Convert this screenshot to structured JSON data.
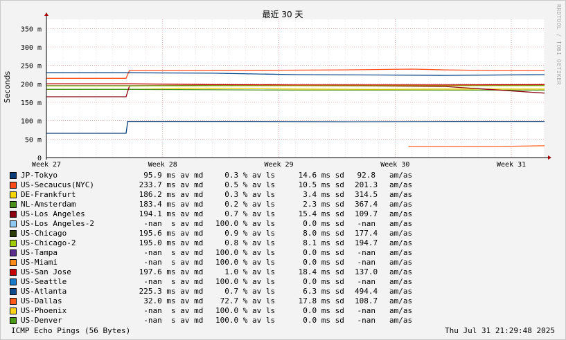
{
  "chart_data": {
    "type": "line",
    "title": "最近 30 天",
    "ylabel": "Seconds",
    "ylim": [
      0,
      375
    ],
    "y_ticks": [
      {
        "v": 0,
        "label": "0"
      },
      {
        "v": 50,
        "label": "50 m"
      },
      {
        "v": 100,
        "label": "100 m"
      },
      {
        "v": 150,
        "label": "150 m"
      },
      {
        "v": 200,
        "label": "200 m"
      },
      {
        "v": 250,
        "label": "250 m"
      },
      {
        "v": 300,
        "label": "300 m"
      },
      {
        "v": 350,
        "label": "350 m"
      }
    ],
    "xlim": [
      0,
      30
    ],
    "x_ticks": [
      {
        "v": 0,
        "label": "Week 27"
      },
      {
        "v": 7,
        "label": "Week 28"
      },
      {
        "v": 14,
        "label": "Week 29"
      },
      {
        "v": 21,
        "label": "Week 30"
      },
      {
        "v": 28,
        "label": "Week 31"
      }
    ],
    "grid": true,
    "series": [
      {
        "name": "JP-Tokyo",
        "color": "#0a3d7a",
        "x": [
          0,
          4.8,
          4.9,
          8,
          12,
          18,
          24,
          30
        ],
        "y": [
          66,
          66,
          98,
          98,
          98,
          97,
          98,
          98
        ]
      },
      {
        "name": "US-Secaucus(NYC)",
        "color": "#ff4a1a",
        "x": [
          0,
          4.8,
          5,
          9,
          14,
          18,
          22,
          24,
          27,
          30
        ],
        "y": [
          215,
          215,
          236,
          236,
          237,
          238,
          240,
          238,
          236,
          236
        ]
      },
      {
        "name": "DE-Frankfurt",
        "color": "#f5d400",
        "x": [
          0,
          5,
          10,
          15,
          20,
          24,
          30
        ],
        "y": [
          185,
          185,
          188,
          186,
          185,
          186,
          186
        ]
      },
      {
        "name": "NL-Amsterdam",
        "color": "#4a8f1a",
        "x": [
          0,
          5,
          10,
          15,
          20,
          24,
          30
        ],
        "y": [
          185,
          185,
          184,
          183,
          183,
          183,
          183
        ]
      },
      {
        "name": "US-Los Angeles",
        "color": "#8b0010",
        "x": [
          0,
          4.8,
          5,
          10,
          15,
          20,
          24,
          30
        ],
        "y": [
          165,
          165,
          194,
          195,
          195,
          194,
          193,
          175
        ]
      },
      {
        "name": "US-Chicago",
        "color": "#2b3a00",
        "x": [
          0,
          5,
          10,
          15,
          20,
          24,
          30
        ],
        "y": [
          195,
          195,
          196,
          196,
          195,
          196,
          196
        ]
      },
      {
        "name": "US-Chicago-2",
        "color": "#9fcc00",
        "x": [
          0,
          5,
          10,
          15,
          20,
          24,
          30
        ],
        "y": [
          194,
          194,
          195,
          195,
          195,
          195,
          195
        ]
      },
      {
        "name": "US-San Jose",
        "color": "#c40000",
        "x": [
          0,
          5,
          10,
          15,
          20,
          24,
          30
        ],
        "y": [
          200,
          200,
          198,
          197,
          197,
          197,
          198
        ]
      },
      {
        "name": "US-Atlanta",
        "color": "#0c4b8c",
        "x": [
          0,
          5,
          10,
          15,
          20,
          24,
          30
        ],
        "y": [
          230,
          230,
          229,
          225,
          224,
          223,
          225
        ]
      },
      {
        "name": "US-Dallas",
        "color": "#ff5a1a",
        "x": [
          21.8,
          24,
          26.9,
          27,
          30
        ],
        "y": [
          30,
          30,
          30,
          30,
          32
        ]
      }
    ]
  },
  "legend": [
    {
      "name": "JP-Tokyo",
      "color": "#0a3d7a",
      "avg": "95.9",
      "avg_unit": "ms",
      "loss": "0.3",
      "sd": "14.6",
      "sd_unit": "ms",
      "max": "92.8"
    },
    {
      "name": "US-Secaucus(NYC)",
      "color": "#ff4a1a",
      "avg": "233.7",
      "avg_unit": "ms",
      "loss": "0.5",
      "sd": "10.5",
      "sd_unit": "ms",
      "max": "201.3"
    },
    {
      "name": "DE-Frankfurt",
      "color": "#f5d400",
      "avg": "186.2",
      "avg_unit": "ms",
      "loss": "0.3",
      "sd": "3.4",
      "sd_unit": "ms",
      "max": "314.5"
    },
    {
      "name": "NL-Amsterdam",
      "color": "#4a8f1a",
      "avg": "183.4",
      "avg_unit": "ms",
      "loss": "0.2",
      "sd": "2.3",
      "sd_unit": "ms",
      "max": "367.4"
    },
    {
      "name": "US-Los Angeles",
      "color": "#8b0010",
      "avg": "194.1",
      "avg_unit": "ms",
      "loss": "0.7",
      "sd": "15.4",
      "sd_unit": "ms",
      "max": "109.7"
    },
    {
      "name": "US-Los Angeles-2",
      "color": "#8fc8f0",
      "avg": "-nan",
      "avg_unit": " s",
      "loss": "100.0",
      "sd": "0.0",
      "sd_unit": "ms",
      "max": "-nan"
    },
    {
      "name": "US-Chicago",
      "color": "#2b3a00",
      "avg": "195.6",
      "avg_unit": "ms",
      "loss": "0.9",
      "sd": "8.0",
      "sd_unit": "ms",
      "max": "177.4"
    },
    {
      "name": "US-Chicago-2",
      "color": "#9fcc00",
      "avg": "195.0",
      "avg_unit": "ms",
      "loss": "0.8",
      "sd": "8.1",
      "sd_unit": "ms",
      "max": "194.7"
    },
    {
      "name": "US-Tampa",
      "color": "#5a2d8c",
      "avg": "-nan",
      "avg_unit": " s",
      "loss": "100.0",
      "sd": "0.0",
      "sd_unit": "ms",
      "max": "-nan"
    },
    {
      "name": "US-Miami",
      "color": "#ff8c1a",
      "avg": "-nan",
      "avg_unit": " s",
      "loss": "100.0",
      "sd": "0.0",
      "sd_unit": "ms",
      "max": "-nan"
    },
    {
      "name": "US-San Jose",
      "color": "#c40000",
      "avg": "197.6",
      "avg_unit": "ms",
      "loss": "1.0",
      "sd": "18.4",
      "sd_unit": "ms",
      "max": "137.0"
    },
    {
      "name": "US-Seattle",
      "color": "#1a7ac8",
      "avg": "-nan",
      "avg_unit": " s",
      "loss": "100.0",
      "sd": "0.0",
      "sd_unit": "ms",
      "max": "-nan"
    },
    {
      "name": "US-Atlanta",
      "color": "#0c4b8c",
      "avg": "225.3",
      "avg_unit": "ms",
      "loss": "0.7",
      "sd": "6.3",
      "sd_unit": "ms",
      "max": "494.4"
    },
    {
      "name": "US-Dallas",
      "color": "#ff5a1a",
      "avg": "32.0",
      "avg_unit": "ms",
      "loss": "72.7",
      "sd": "17.8",
      "sd_unit": "ms",
      "max": "108.7"
    },
    {
      "name": "US-Phoenix",
      "color": "#ffd21a",
      "avg": "-nan",
      "avg_unit": " s",
      "loss": "100.0",
      "sd": "0.0",
      "sd_unit": "ms",
      "max": "-nan"
    },
    {
      "name": "US-Denver",
      "color": "#4a9a1a",
      "avg": "-nan",
      "avg_unit": " s",
      "loss": "100.0",
      "sd": "0.0",
      "sd_unit": "ms",
      "max": "-nan"
    }
  ],
  "labels": {
    "av_md": "av md",
    "av_ls": "% av ls",
    "sd": "sd",
    "unit": "am/as"
  },
  "footer": {
    "left": "ICMP Echo Pings (56 Bytes)",
    "right": "Thu Jul 31 21:29:48 2025"
  },
  "side_label": "RRDTOOL / TOBI OETIKER"
}
